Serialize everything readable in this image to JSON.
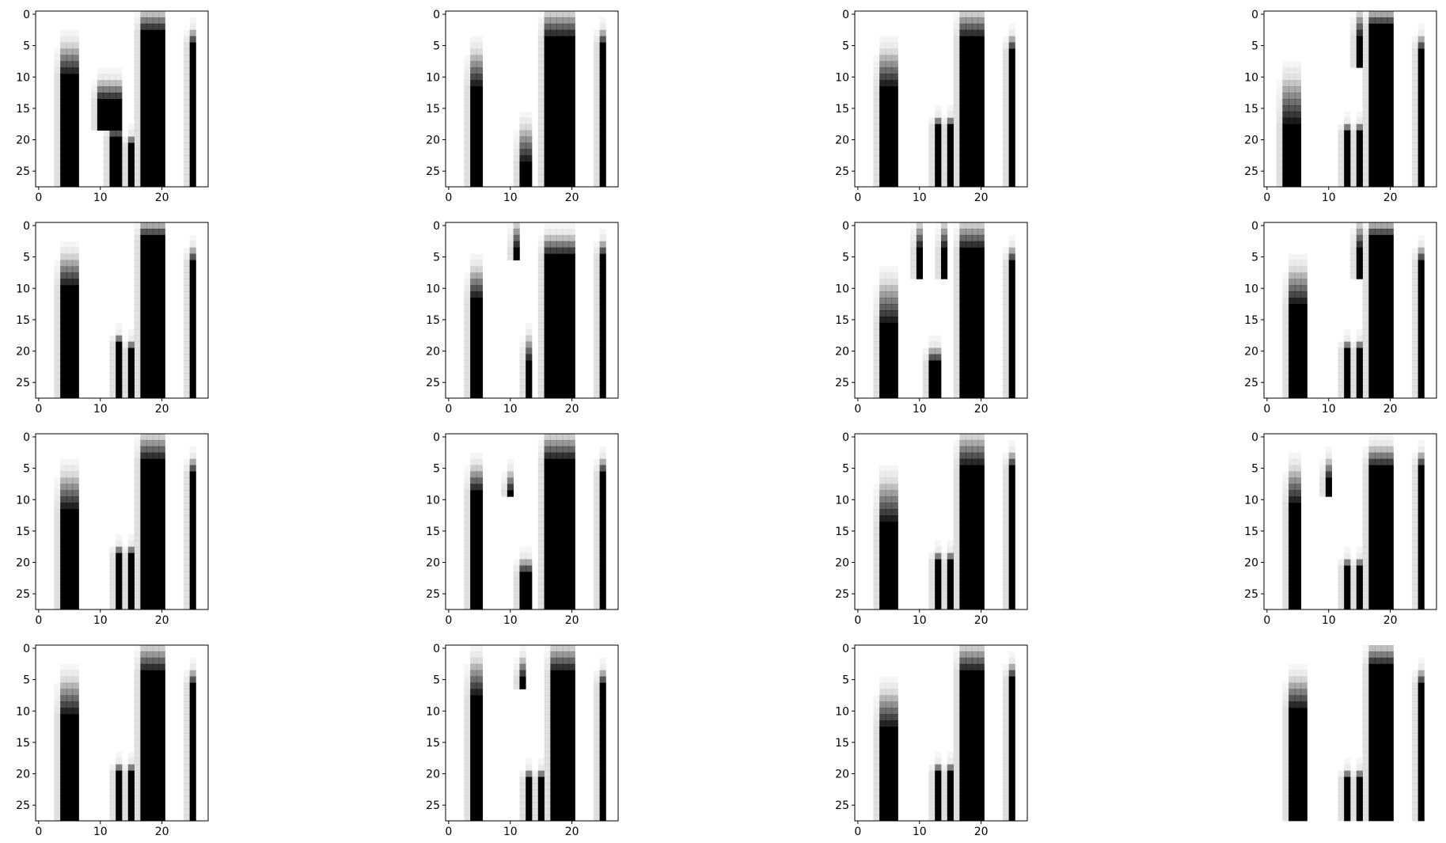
{
  "figure": {
    "rows": 4,
    "cols": 4,
    "background": "#ffffff",
    "colormap": "gray_r",
    "pixel_colors": {
      "ink": "#000000",
      "paper": "#ffffff"
    }
  },
  "chart_data": {
    "type": "heatmap",
    "grid": [
      4,
      4
    ],
    "image_shape": [
      28,
      28
    ],
    "colormap": "gray_r",
    "xlim": [
      -0.5,
      27.5
    ],
    "ylim": [
      27.5,
      -0.5
    ],
    "x_ticks": [
      0,
      10,
      20
    ],
    "x_tick_labels": [
      "0",
      "10",
      "20"
    ],
    "y_ticks": [
      0,
      5,
      10,
      15,
      20,
      25
    ],
    "y_tick_labels": [
      "0",
      "5",
      "10",
      "15",
      "20",
      "25"
    ],
    "panels": [
      {
        "index": 0,
        "axes_visible": true,
        "stripes": [
          {
            "c0": 4,
            "c1": 6,
            "r0": 5,
            "r1": 27,
            "fade": 5
          },
          {
            "c0": 10,
            "c1": 13,
            "r0": 11,
            "r1": 18,
            "fade": 3
          },
          {
            "c0": 12,
            "c1": 13,
            "r0": 18,
            "r1": 27,
            "fade": 2
          },
          {
            "c0": 15,
            "c1": 15,
            "r0": 20,
            "r1": 27,
            "fade": 1
          },
          {
            "c0": 17,
            "c1": 20,
            "r0": 0,
            "r1": 27,
            "fade": 3
          },
          {
            "c0": 25,
            "c1": 25,
            "r0": 3,
            "r1": 27,
            "fade": 2
          }
        ]
      },
      {
        "index": 1,
        "axes_visible": true,
        "stripes": [
          {
            "c0": 4,
            "c1": 5,
            "r0": 6,
            "r1": 27,
            "fade": 6
          },
          {
            "c0": 12,
            "c1": 13,
            "r0": 18,
            "r1": 27,
            "fade": 6
          },
          {
            "c0": 16,
            "c1": 20,
            "r0": 0,
            "r1": 27,
            "fade": 4
          },
          {
            "c0": 25,
            "c1": 25,
            "r0": 3,
            "r1": 27,
            "fade": 2
          }
        ]
      },
      {
        "index": 2,
        "axes_visible": true,
        "stripes": [
          {
            "c0": 4,
            "c1": 6,
            "r0": 6,
            "r1": 27,
            "fade": 6
          },
          {
            "c0": 13,
            "c1": 13,
            "r0": 17,
            "r1": 27,
            "fade": 1
          },
          {
            "c0": 15,
            "c1": 15,
            "r0": 17,
            "r1": 27,
            "fade": 1
          },
          {
            "c0": 17,
            "c1": 20,
            "r0": 0,
            "r1": 27,
            "fade": 4
          },
          {
            "c0": 25,
            "c1": 25,
            "r0": 4,
            "r1": 27,
            "fade": 2
          }
        ]
      },
      {
        "index": 3,
        "axes_visible": true,
        "stripes": [
          {
            "c0": 3,
            "c1": 5,
            "r0": 10,
            "r1": 27,
            "fade": 8
          },
          {
            "c0": 13,
            "c1": 13,
            "r0": 18,
            "r1": 27,
            "fade": 1
          },
          {
            "c0": 15,
            "c1": 15,
            "r0": 0,
            "r1": 8,
            "fade": 4
          },
          {
            "c0": 15,
            "c1": 15,
            "r0": 18,
            "r1": 27,
            "fade": 1
          },
          {
            "c0": 17,
            "c1": 20,
            "r0": 0,
            "r1": 27,
            "fade": 2
          },
          {
            "c0": 25,
            "c1": 25,
            "r0": 4,
            "r1": 27,
            "fade": 2
          }
        ]
      },
      {
        "index": 4,
        "axes_visible": true,
        "stripes": [
          {
            "c0": 4,
            "c1": 6,
            "r0": 5,
            "r1": 27,
            "fade": 5
          },
          {
            "c0": 13,
            "c1": 13,
            "r0": 18,
            "r1": 27,
            "fade": 1
          },
          {
            "c0": 15,
            "c1": 15,
            "r0": 19,
            "r1": 27,
            "fade": 1
          },
          {
            "c0": 17,
            "c1": 20,
            "r0": 0,
            "r1": 27,
            "fade": 2
          },
          {
            "c0": 25,
            "c1": 25,
            "r0": 4,
            "r1": 27,
            "fade": 2
          }
        ]
      },
      {
        "index": 5,
        "axes_visible": true,
        "stripes": [
          {
            "c0": 4,
            "c1": 5,
            "r0": 7,
            "r1": 27,
            "fade": 5
          },
          {
            "c0": 11,
            "c1": 11,
            "r0": 0,
            "r1": 5,
            "fade": 4
          },
          {
            "c0": 13,
            "c1": 13,
            "r0": 18,
            "r1": 27,
            "fade": 4
          },
          {
            "c0": 16,
            "c1": 20,
            "r0": 2,
            "r1": 27,
            "fade": 3
          },
          {
            "c0": 25,
            "c1": 25,
            "r0": 3,
            "r1": 27,
            "fade": 2
          }
        ]
      },
      {
        "index": 6,
        "axes_visible": true,
        "stripes": [
          {
            "c0": 4,
            "c1": 6,
            "r0": 9,
            "r1": 27,
            "fade": 7
          },
          {
            "c0": 10,
            "c1": 10,
            "r0": 0,
            "r1": 8,
            "fade": 4
          },
          {
            "c0": 12,
            "c1": 13,
            "r0": 20,
            "r1": 27,
            "fade": 2
          },
          {
            "c0": 14,
            "c1": 14,
            "r0": 0,
            "r1": 8,
            "fade": 4
          },
          {
            "c0": 17,
            "c1": 20,
            "r0": 0,
            "r1": 27,
            "fade": 4
          },
          {
            "c0": 25,
            "c1": 25,
            "r0": 4,
            "r1": 27,
            "fade": 2
          }
        ]
      },
      {
        "index": 7,
        "axes_visible": true,
        "stripes": [
          {
            "c0": 4,
            "c1": 6,
            "r0": 7,
            "r1": 27,
            "fade": 6
          },
          {
            "c0": 13,
            "c1": 13,
            "r0": 19,
            "r1": 27,
            "fade": 1
          },
          {
            "c0": 15,
            "c1": 15,
            "r0": 0,
            "r1": 8,
            "fade": 4
          },
          {
            "c0": 15,
            "c1": 15,
            "r0": 19,
            "r1": 27,
            "fade": 1
          },
          {
            "c0": 17,
            "c1": 20,
            "r0": 0,
            "r1": 27,
            "fade": 2
          },
          {
            "c0": 25,
            "c1": 25,
            "r0": 4,
            "r1": 27,
            "fade": 2
          }
        ]
      },
      {
        "index": 8,
        "axes_visible": true,
        "stripes": [
          {
            "c0": 4,
            "c1": 6,
            "r0": 6,
            "r1": 27,
            "fade": 6
          },
          {
            "c0": 13,
            "c1": 13,
            "r0": 18,
            "r1": 27,
            "fade": 1
          },
          {
            "c0": 15,
            "c1": 15,
            "r0": 18,
            "r1": 27,
            "fade": 1
          },
          {
            "c0": 17,
            "c1": 20,
            "r0": 0,
            "r1": 27,
            "fade": 4
          },
          {
            "c0": 25,
            "c1": 25,
            "r0": 4,
            "r1": 27,
            "fade": 2
          }
        ]
      },
      {
        "index": 9,
        "axes_visible": true,
        "stripes": [
          {
            "c0": 4,
            "c1": 5,
            "r0": 5,
            "r1": 27,
            "fade": 4
          },
          {
            "c0": 10,
            "c1": 10,
            "r0": 6,
            "r1": 9,
            "fade": 3
          },
          {
            "c0": 12,
            "c1": 13,
            "r0": 20,
            "r1": 27,
            "fade": 2
          },
          {
            "c0": 16,
            "c1": 20,
            "r0": 0,
            "r1": 27,
            "fade": 4
          },
          {
            "c0": 25,
            "c1": 25,
            "r0": 4,
            "r1": 27,
            "fade": 2
          }
        ]
      },
      {
        "index": 10,
        "axes_visible": true,
        "stripes": [
          {
            "c0": 4,
            "c1": 6,
            "r0": 7,
            "r1": 27,
            "fade": 7
          },
          {
            "c0": 13,
            "c1": 13,
            "r0": 19,
            "r1": 27,
            "fade": 1
          },
          {
            "c0": 15,
            "c1": 15,
            "r0": 19,
            "r1": 27,
            "fade": 1
          },
          {
            "c0": 17,
            "c1": 20,
            "r0": 0,
            "r1": 27,
            "fade": 5
          },
          {
            "c0": 25,
            "c1": 25,
            "r0": 3,
            "r1": 27,
            "fade": 2
          }
        ]
      },
      {
        "index": 11,
        "axes_visible": true,
        "stripes": [
          {
            "c0": 4,
            "c1": 5,
            "r0": 5,
            "r1": 27,
            "fade": 6
          },
          {
            "c0": 10,
            "c1": 10,
            "r0": 4,
            "r1": 9,
            "fade": 3
          },
          {
            "c0": 13,
            "c1": 13,
            "r0": 20,
            "r1": 27,
            "fade": 1
          },
          {
            "c0": 15,
            "c1": 15,
            "r0": 20,
            "r1": 27,
            "fade": 1
          },
          {
            "c0": 17,
            "c1": 20,
            "r0": 2,
            "r1": 27,
            "fade": 3
          },
          {
            "c0": 25,
            "c1": 25,
            "r0": 3,
            "r1": 27,
            "fade": 2
          }
        ]
      },
      {
        "index": 12,
        "axes_visible": true,
        "stripes": [
          {
            "c0": 4,
            "c1": 6,
            "r0": 5,
            "r1": 27,
            "fade": 6
          },
          {
            "c0": 13,
            "c1": 13,
            "r0": 19,
            "r1": 27,
            "fade": 1
          },
          {
            "c0": 15,
            "c1": 15,
            "r0": 19,
            "r1": 27,
            "fade": 1
          },
          {
            "c0": 17,
            "c1": 20,
            "r0": 0,
            "r1": 27,
            "fade": 4
          },
          {
            "c0": 25,
            "c1": 25,
            "r0": 4,
            "r1": 27,
            "fade": 2
          }
        ]
      },
      {
        "index": 13,
        "axes_visible": true,
        "stripes": [
          {
            "c0": 4,
            "c1": 5,
            "r0": 2,
            "r1": 27,
            "fade": 6
          },
          {
            "c0": 12,
            "c1": 12,
            "r0": 2,
            "r1": 6,
            "fade": 3
          },
          {
            "c0": 13,
            "c1": 13,
            "r0": 20,
            "r1": 27,
            "fade": 1
          },
          {
            "c0": 15,
            "c1": 15,
            "r0": 20,
            "r1": 27,
            "fade": 1
          },
          {
            "c0": 17,
            "c1": 20,
            "r0": 0,
            "r1": 27,
            "fade": 4
          },
          {
            "c0": 25,
            "c1": 25,
            "r0": 4,
            "r1": 27,
            "fade": 2
          }
        ]
      },
      {
        "index": 14,
        "axes_visible": true,
        "stripes": [
          {
            "c0": 4,
            "c1": 6,
            "r0": 7,
            "r1": 27,
            "fade": 6
          },
          {
            "c0": 13,
            "c1": 13,
            "r0": 19,
            "r1": 27,
            "fade": 1
          },
          {
            "c0": 15,
            "c1": 15,
            "r0": 19,
            "r1": 27,
            "fade": 1
          },
          {
            "c0": 17,
            "c1": 20,
            "r0": 0,
            "r1": 27,
            "fade": 4
          },
          {
            "c0": 25,
            "c1": 25,
            "r0": 3,
            "r1": 27,
            "fade": 2
          }
        ]
      },
      {
        "index": 15,
        "axes_visible": false,
        "stripes": [
          {
            "c0": 4,
            "c1": 6,
            "r0": 5,
            "r1": 27,
            "fade": 5
          },
          {
            "c0": 13,
            "c1": 13,
            "r0": 20,
            "r1": 27,
            "fade": 1
          },
          {
            "c0": 15,
            "c1": 15,
            "r0": 20,
            "r1": 27,
            "fade": 1
          },
          {
            "c0": 17,
            "c1": 20,
            "r0": 0,
            "r1": 27,
            "fade": 3
          },
          {
            "c0": 25,
            "c1": 25,
            "r0": 4,
            "r1": 27,
            "fade": 2
          }
        ]
      }
    ]
  }
}
